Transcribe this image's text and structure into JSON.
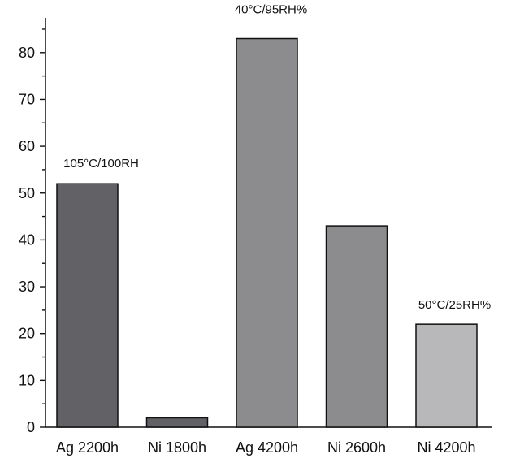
{
  "chart_data": {
    "type": "bar",
    "title": "",
    "xlabel": "",
    "ylabel": "",
    "ylim": [
      0,
      90
    ],
    "yticks": [
      0,
      10,
      20,
      30,
      40,
      50,
      60,
      70,
      80
    ],
    "grid": false,
    "legend": "none",
    "categories": [
      "Ag 2200h",
      "Ni 1800h",
      "Ag 4200h",
      "Ni 2600h",
      "Ni 4200h"
    ],
    "values": [
      52,
      2,
      83,
      43,
      22
    ],
    "bar_colors": [
      "#616166",
      "#616166",
      "#8c8c8f",
      "#8c8c8f",
      "#b8b8bb"
    ],
    "annotations": [
      {
        "text": "105°C/100RH",
        "category": "Ag 2200h"
      },
      {
        "text": "40°C/95RH%",
        "category": "Ag 4200h"
      },
      {
        "text": "50°C/25RH%",
        "category": "Ni 4200h"
      }
    ]
  }
}
